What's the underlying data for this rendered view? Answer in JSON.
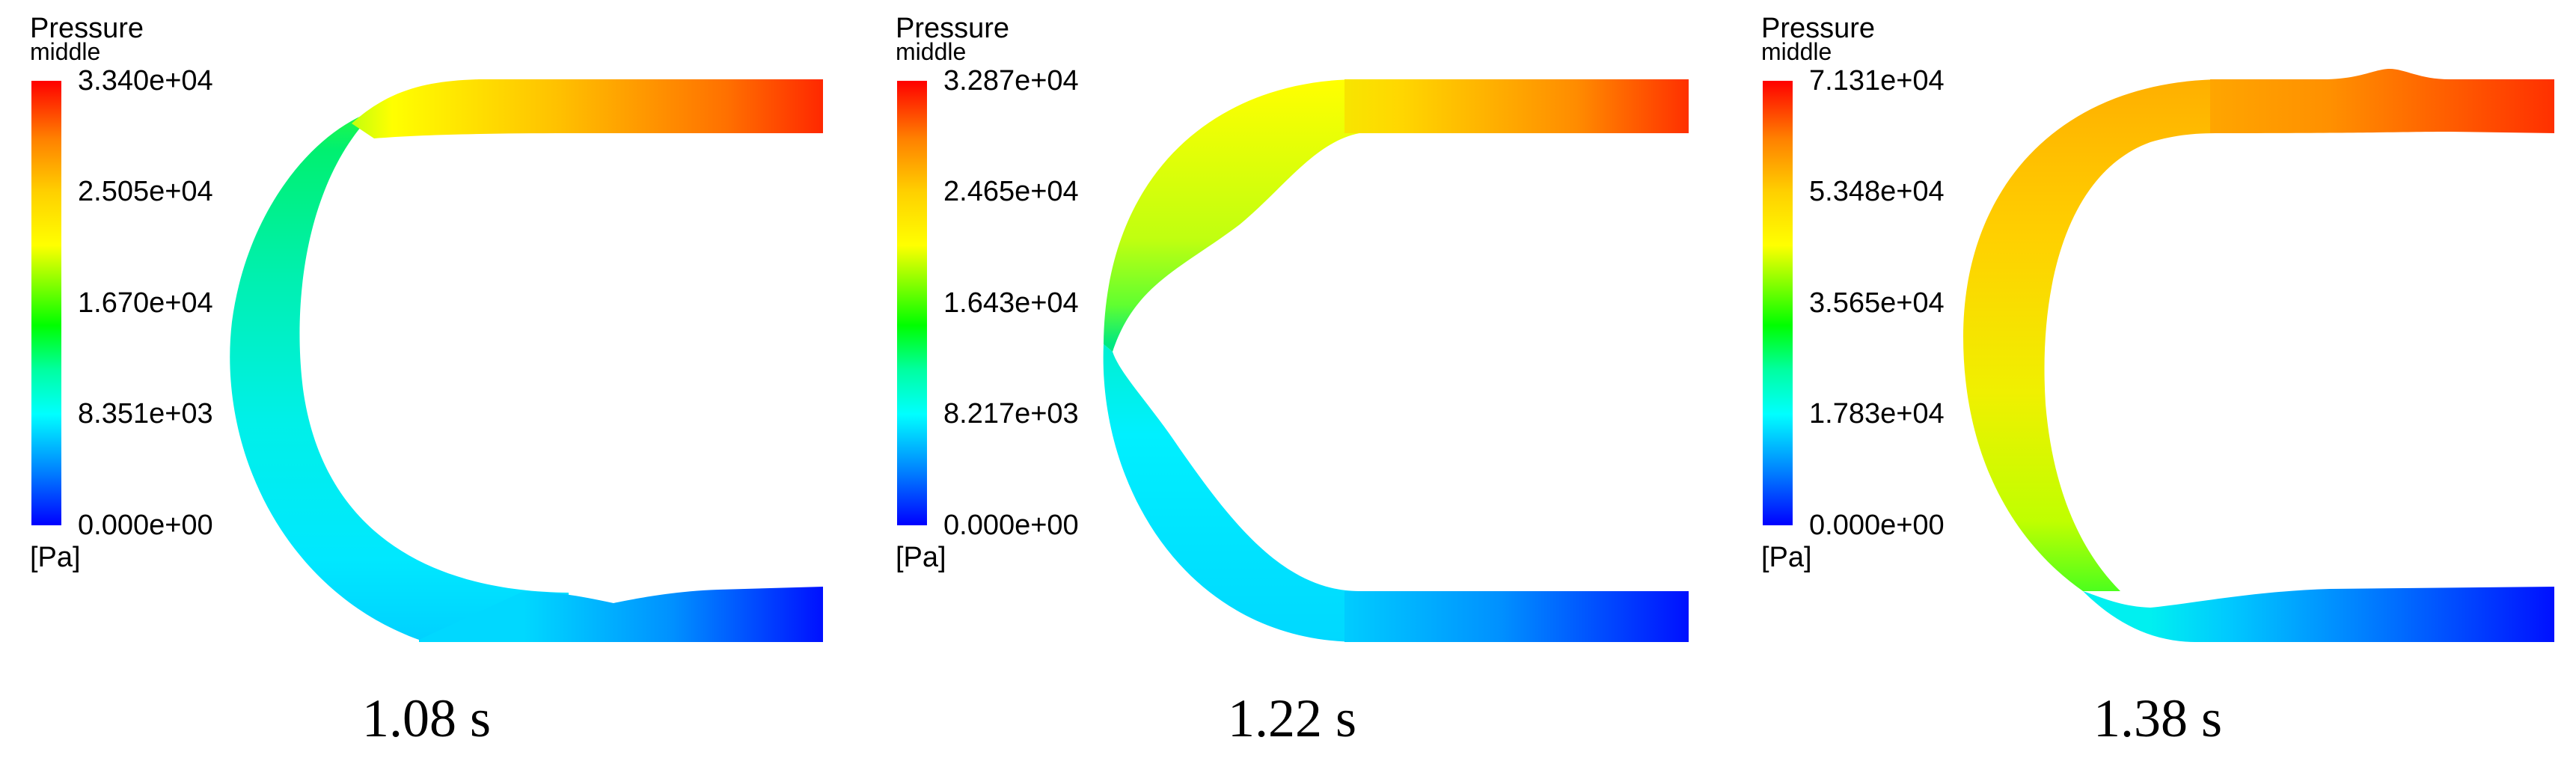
{
  "panels": [
    {
      "legend": {
        "title": "Pressure",
        "subtitle": "middle",
        "ticks": [
          "3.340e+04",
          "2.505e+04",
          "1.670e+04",
          "8.351e+03",
          "0.000e+00"
        ],
        "unit": "[Pa]"
      },
      "caption": "1.08 s"
    },
    {
      "legend": {
        "title": "Pressure",
        "subtitle": "middle",
        "ticks": [
          "3.287e+04",
          "2.465e+04",
          "1.643e+04",
          "8.217e+03",
          "0.000e+00"
        ],
        "unit": "[Pa]"
      },
      "caption": "1.22 s"
    },
    {
      "legend": {
        "title": "Pressure",
        "subtitle": "middle",
        "ticks": [
          "7.131e+04",
          "5.348e+04",
          "3.565e+04",
          "1.783e+04",
          "0.000e+00"
        ],
        "unit": "[Pa]"
      },
      "caption": "1.38 s"
    }
  ],
  "colormap": [
    "#0000ff",
    "#0080ff",
    "#00ffff",
    "#00ffa0",
    "#00ff00",
    "#80ff00",
    "#ffff00",
    "#ffd000",
    "#ff8000",
    "#ff0000"
  ]
}
